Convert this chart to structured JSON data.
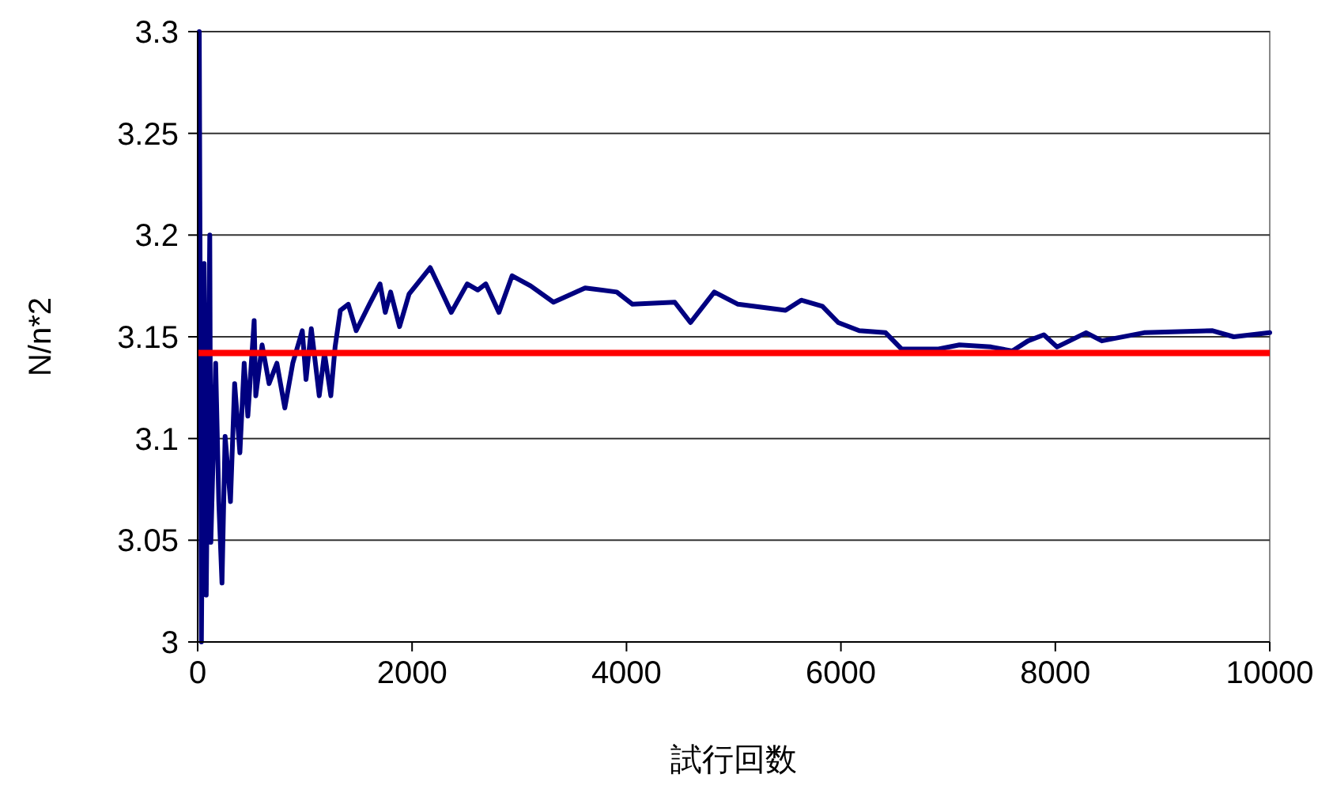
{
  "chart_data": {
    "type": "line",
    "xlabel": "試行回数",
    "ylabel": "N/n*2",
    "x": [
      15,
      35,
      60,
      80,
      113,
      123,
      168,
      197,
      227,
      256,
      306,
      345,
      394,
      434,
      468,
      527,
      542,
      601,
      666,
      739,
      813,
      887,
      976,
      1011,
      1060,
      1134,
      1183,
      1242,
      1282,
      1331,
      1405,
      1479,
      1602,
      1701,
      1750,
      1800,
      1883,
      1972,
      2169,
      2268,
      2366,
      2514,
      2613,
      2687,
      2810,
      2933,
      3106,
      3319,
      3614,
      3909,
      4056,
      4450,
      4597,
      4819,
      5040,
      5483,
      5630,
      5827,
      5975,
      6171,
      6417,
      6565,
      6910,
      7106,
      7401,
      7598,
      7746,
      7893,
      8016,
      8287,
      8434,
      8828,
      9467,
      9664,
      10000
    ],
    "series": [
      {
        "color": "#000080",
        "values": [
          3.3,
          3.0,
          3.186,
          3.023,
          3.2,
          3.049,
          3.137,
          3.069,
          3.029,
          3.101,
          3.069,
          3.127,
          3.093,
          3.137,
          3.111,
          3.158,
          3.121,
          3.146,
          3.127,
          3.137,
          3.115,
          3.137,
          3.153,
          3.129,
          3.154,
          3.121,
          3.142,
          3.121,
          3.145,
          3.163,
          3.166,
          3.153,
          3.166,
          3.176,
          3.162,
          3.172,
          3.155,
          3.171,
          3.184,
          3.173,
          3.162,
          3.176,
          3.173,
          3.176,
          3.162,
          3.18,
          3.175,
          3.167,
          3.174,
          3.172,
          3.166,
          3.167,
          3.157,
          3.172,
          3.166,
          3.163,
          3.168,
          3.165,
          3.157,
          3.153,
          3.152,
          3.144,
          3.144,
          3.146,
          3.145,
          3.143,
          3.148,
          3.151,
          3.145,
          3.152,
          3.148,
          3.152,
          3.153,
          3.15,
          3.152
        ]
      }
    ],
    "xlim": [
      0,
      10000
    ],
    "xticks": [
      0,
      2000,
      4000,
      6000,
      8000,
      10000
    ],
    "ylim": [
      3,
      3.3
    ],
    "yticks": [
      3,
      3.05,
      3.1,
      3.15,
      3.2,
      3.25,
      3.3
    ],
    "grid": "y",
    "marker": "none",
    "line_style": "solid",
    "ref_lines": [
      {
        "axis": "y",
        "value": 3.142,
        "color": "#ff0000"
      }
    ]
  }
}
